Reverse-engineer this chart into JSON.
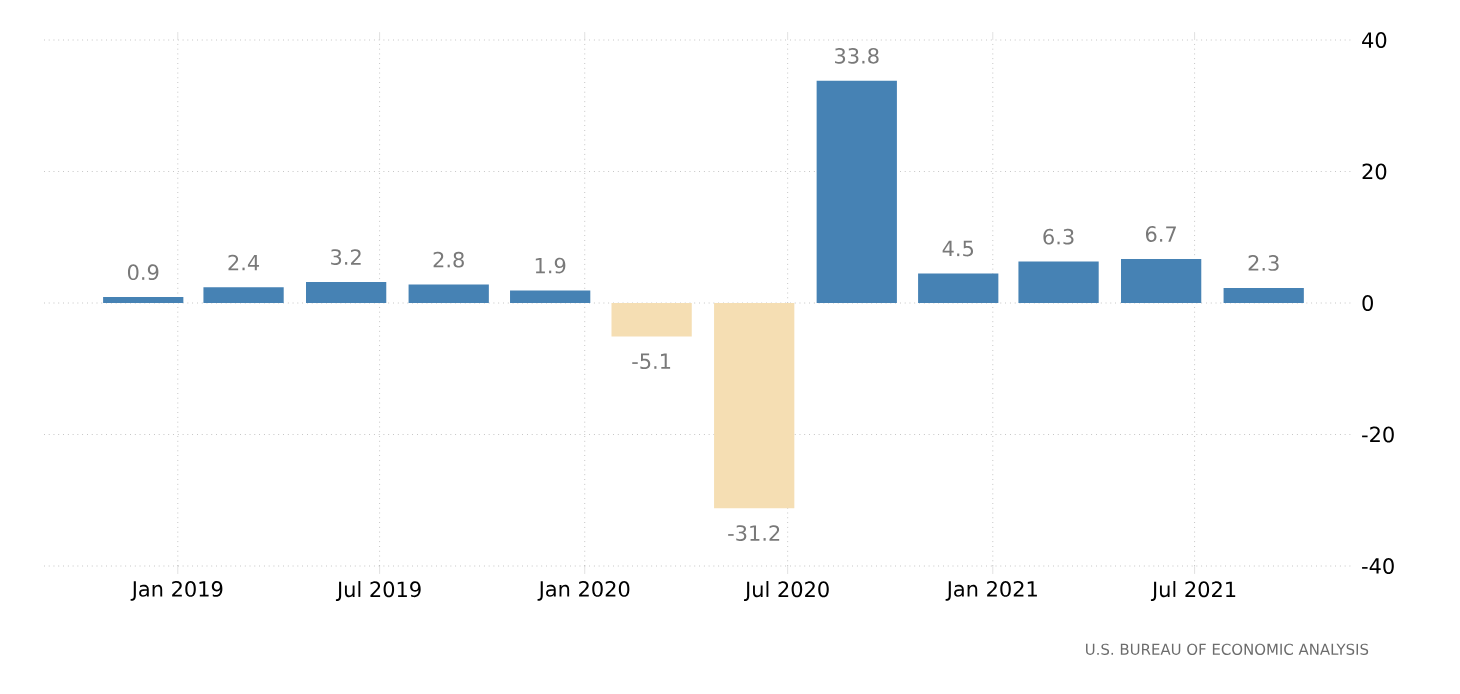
{
  "chart_data": {
    "type": "bar",
    "x": [
      "2018-12",
      "2019-03",
      "2019-06",
      "2019-09",
      "2019-12",
      "2020-03",
      "2020-06",
      "2020-09",
      "2020-12",
      "2021-03",
      "2021-06",
      "2021-09"
    ],
    "values": [
      0.9,
      2.4,
      3.2,
      2.8,
      1.9,
      -5.1,
      -31.2,
      33.8,
      4.5,
      6.3,
      6.7,
      2.3
    ],
    "colors": [
      "#4682b4",
      "#4682b4",
      "#4682b4",
      "#4682b4",
      "#4682b4",
      "#f5deb3",
      "#f5deb3",
      "#4682b4",
      "#4682b4",
      "#4682b4",
      "#4682b4",
      "#4682b4"
    ],
    "data_labels": true,
    "xlim": [
      "2018-09-03",
      "2021-11-21"
    ],
    "xticks": [
      {
        "value": "2019-01",
        "label": "Jan 2019"
      },
      {
        "value": "2019-07",
        "label": "Jul 2019"
      },
      {
        "value": "2020-01",
        "label": "Jan 2020"
      },
      {
        "value": "2020-07",
        "label": "Jul 2020"
      },
      {
        "value": "2021-01",
        "label": "Jan 2021"
      },
      {
        "value": "2021-07",
        "label": "Jul 2021"
      }
    ],
    "ylim": [
      -40,
      40
    ],
    "yticks": [
      -40,
      -20,
      0,
      20,
      40
    ],
    "grid": true,
    "annotations": [
      "U.S. BUREAU OF ECONOMIC ANALYSIS"
    ]
  }
}
